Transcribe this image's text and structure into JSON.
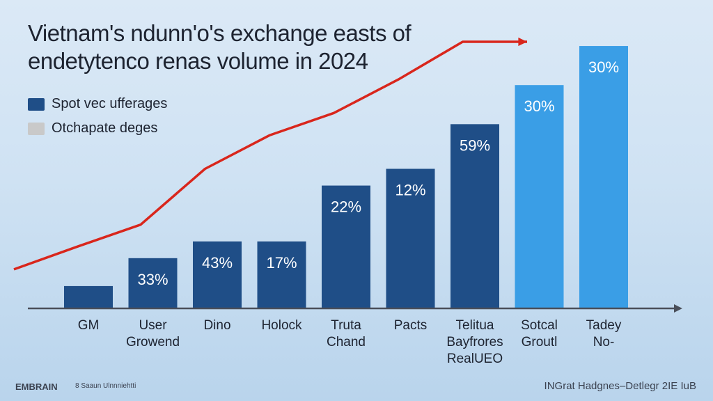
{
  "chart_data": {
    "type": "bar",
    "title": "Vietnam's ndunn'o's exchange easts of endetytenco renas volume in 2024",
    "legend": [
      {
        "label": "Spot vec ufferages",
        "color": "#1f4e87"
      },
      {
        "label": "Otchapate deges",
        "color": "#c9c9c9"
      }
    ],
    "legend_position": "top-left",
    "categories": [
      "GM",
      "User Growend",
      "Dino",
      "Holock",
      "Truta Chand",
      "Pacts",
      "Telitua Bayfrores RealUEO",
      "Sotcal Groutl",
      "Tadey No-"
    ],
    "category_lines": [
      [
        "GM"
      ],
      [
        "User",
        "Growend"
      ],
      [
        "Dino"
      ],
      [
        "Holock"
      ],
      [
        "Truta",
        "Chand"
      ],
      [
        "Pacts"
      ],
      [
        "Telitua",
        "Bayfrores",
        "RealUEO"
      ],
      [
        "Sotcal",
        "Groutl"
      ],
      [
        "Tadey",
        "No-"
      ]
    ],
    "values": [
      8,
      18,
      24,
      24,
      44,
      50,
      66,
      80,
      94
    ],
    "data_labels": [
      "",
      "33%",
      "43%",
      "17%",
      "22%",
      "12%",
      "59%",
      "30%",
      "30%"
    ],
    "bar_colors": [
      "#1f4e87",
      "#1f4e87",
      "#1f4e87",
      "#1f4e87",
      "#1f4e87",
      "#1f4e87",
      "#1f4e87",
      "#3a9ee6",
      "#3a9ee6"
    ],
    "trend_line": [
      14,
      22,
      30,
      50,
      62,
      70,
      82,
      97,
      112
    ],
    "trend_color": "#d9261c",
    "ylim": [
      0,
      100
    ],
    "grid": false
  },
  "footer": {
    "left_logo": "EMBRAIN",
    "left_text": "8 Saaun Ulnnniehtti",
    "right_text": "INGrat Hadgnes–Detlegr 2IE IuB"
  }
}
